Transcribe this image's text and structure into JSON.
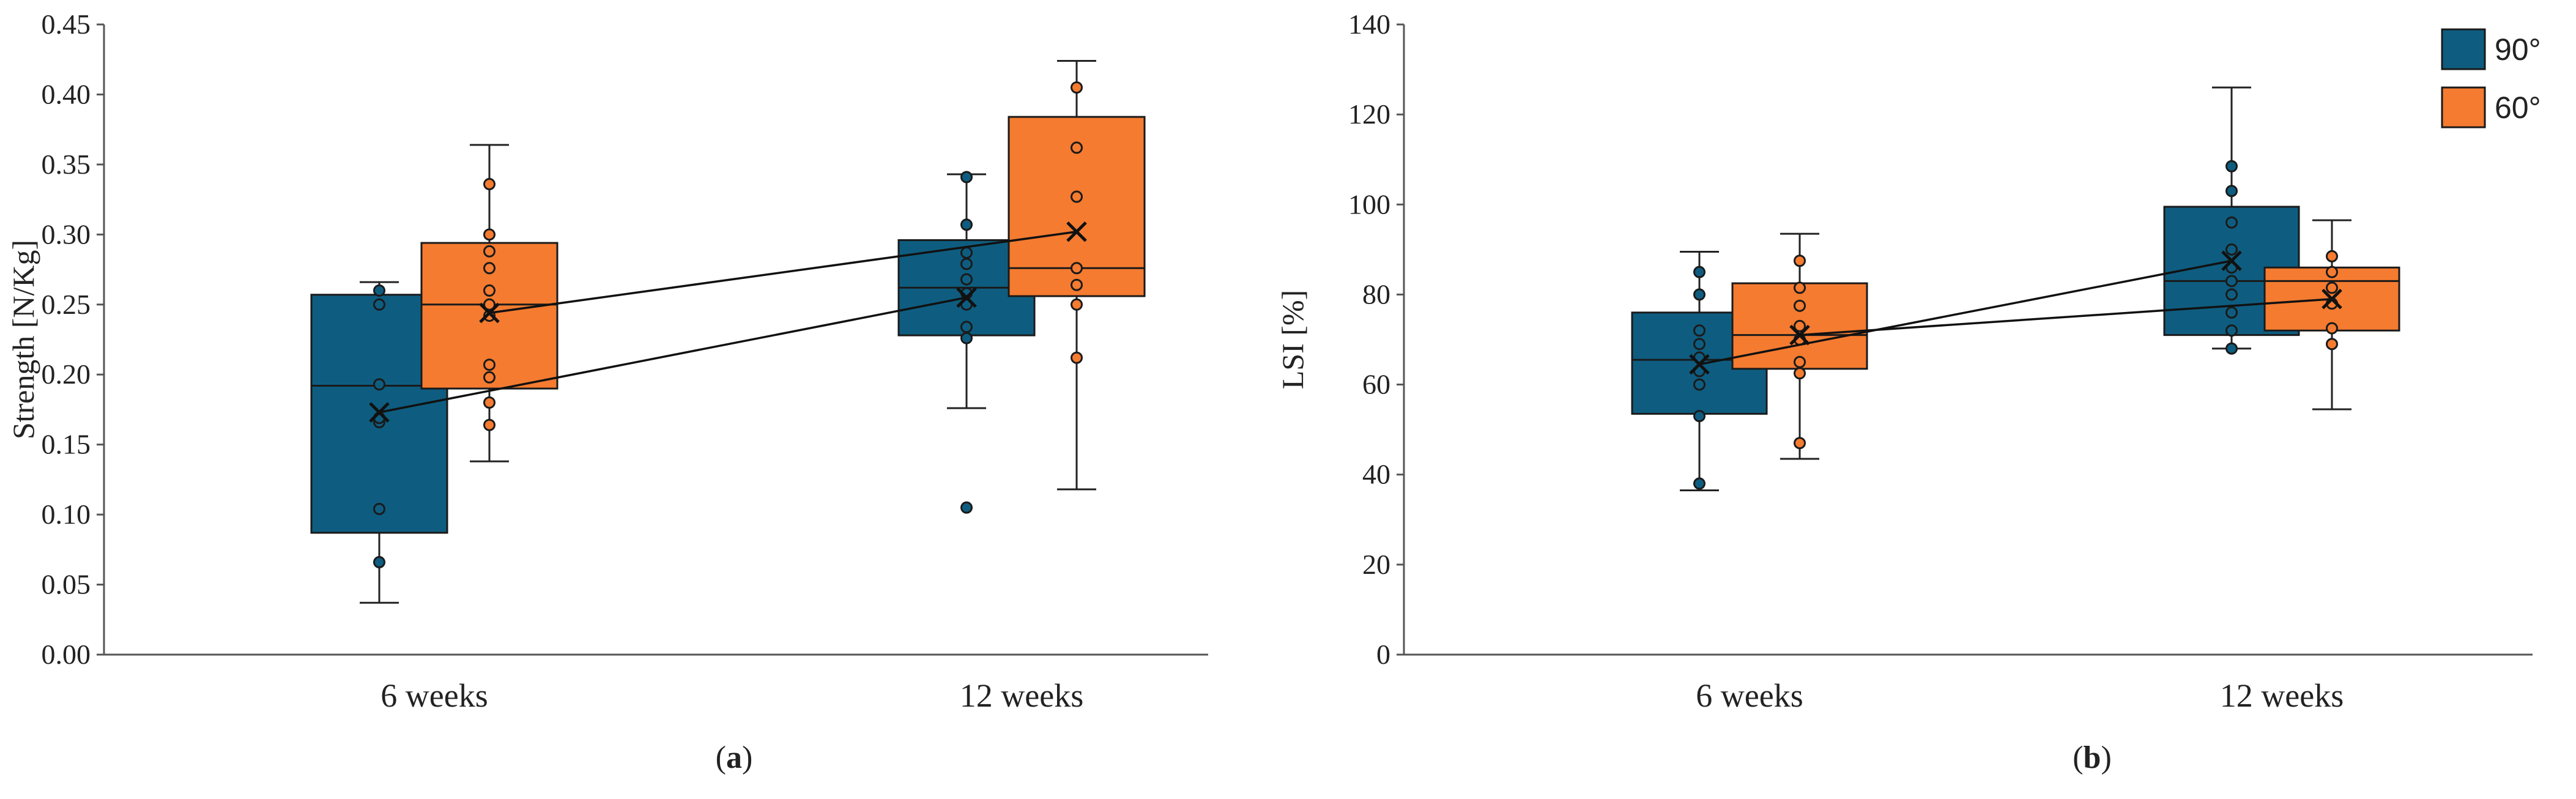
{
  "colors": {
    "series_90": "#0e5d80",
    "series_60": "#f47b30"
  },
  "chart_data": [
    {
      "panel": "a",
      "type": "box",
      "title": "",
      "xlabel": "",
      "ylabel": "Strength [N/Kg]",
      "ylim": [
        0,
        0.45
      ],
      "yticks": [
        0,
        0.05,
        0.1,
        0.15,
        0.2,
        0.25,
        0.3,
        0.35,
        0.4,
        0.45
      ],
      "ytick_labels": [
        "0.00",
        "0.05",
        "0.10",
        "0.15",
        "0.20",
        "0.25",
        "0.30",
        "0.35",
        "0.40",
        "0.45"
      ],
      "categories": [
        "6 weeks",
        "12 weeks"
      ],
      "series": [
        {
          "name": "90°",
          "boxes": [
            {
              "min": 0.037,
              "q1": 0.087,
              "median": 0.192,
              "q3": 0.257,
              "max": 0.266,
              "mean": 0.173,
              "points": [
                0.066,
                0.104,
                0.166,
                0.169,
                0.193,
                0.25,
                0.26
              ]
            },
            {
              "min": 0.176,
              "q1": 0.228,
              "median": 0.262,
              "q3": 0.296,
              "max": 0.343,
              "mean": 0.255,
              "points": [
                0.105,
                0.226,
                0.234,
                0.25,
                0.258,
                0.268,
                0.279,
                0.287,
                0.307,
                0.341
              ]
            }
          ]
        },
        {
          "name": "60°",
          "boxes": [
            {
              "min": 0.138,
              "q1": 0.19,
              "median": 0.25,
              "q3": 0.294,
              "max": 0.364,
              "mean": 0.244,
              "points": [
                0.164,
                0.18,
                0.198,
                0.207,
                0.242,
                0.25,
                0.26,
                0.276,
                0.288,
                0.3,
                0.336
              ]
            },
            {
              "min": 0.118,
              "q1": 0.256,
              "median": 0.276,
              "q3": 0.384,
              "max": 0.424,
              "mean": 0.302,
              "points": [
                0.212,
                0.25,
                0.264,
                0.276,
                0.327,
                0.362,
                0.405
              ]
            }
          ]
        }
      ],
      "panel_label": "a"
    },
    {
      "panel": "b",
      "type": "box",
      "title": "",
      "xlabel": "",
      "ylabel": "LSI [%]",
      "ylim": [
        0,
        140
      ],
      "yticks": [
        0,
        20,
        40,
        60,
        80,
        100,
        120,
        140
      ],
      "ytick_labels": [
        "0",
        "20",
        "40",
        "60",
        "80",
        "100",
        "120",
        "140"
      ],
      "categories": [
        "6 weeks",
        "12 weeks"
      ],
      "series": [
        {
          "name": "90°",
          "boxes": [
            {
              "min": 36.5,
              "q1": 53.5,
              "median": 65.5,
              "q3": 76,
              "max": 89.5,
              "mean": 64.5,
              "points": [
                38,
                53,
                60,
                63,
                66,
                69,
                72,
                80,
                85
              ]
            },
            {
              "min": 68,
              "q1": 71,
              "median": 83,
              "q3": 99.5,
              "max": 126,
              "mean": 87.5,
              "points": [
                68,
                72,
                76,
                80,
                83,
                86,
                90,
                96,
                103,
                108.5
              ]
            }
          ]
        },
        {
          "name": "60°",
          "boxes": [
            {
              "min": 43.5,
              "q1": 63.5,
              "median": 71,
              "q3": 82.5,
              "max": 93.5,
              "mean": 71,
              "points": [
                47,
                62.5,
                65,
                70,
                73,
                77.5,
                81.5,
                87.5
              ]
            },
            {
              "min": 54.5,
              "q1": 72,
              "median": 83,
              "q3": 86,
              "max": 96.5,
              "mean": 79,
              "points": [
                69,
                72.5,
                78,
                81.5,
                85,
                88.5
              ]
            }
          ]
        }
      ],
      "panel_label": "b"
    }
  ],
  "legend": {
    "position": "top-right",
    "items": [
      "90°",
      "60°"
    ]
  }
}
